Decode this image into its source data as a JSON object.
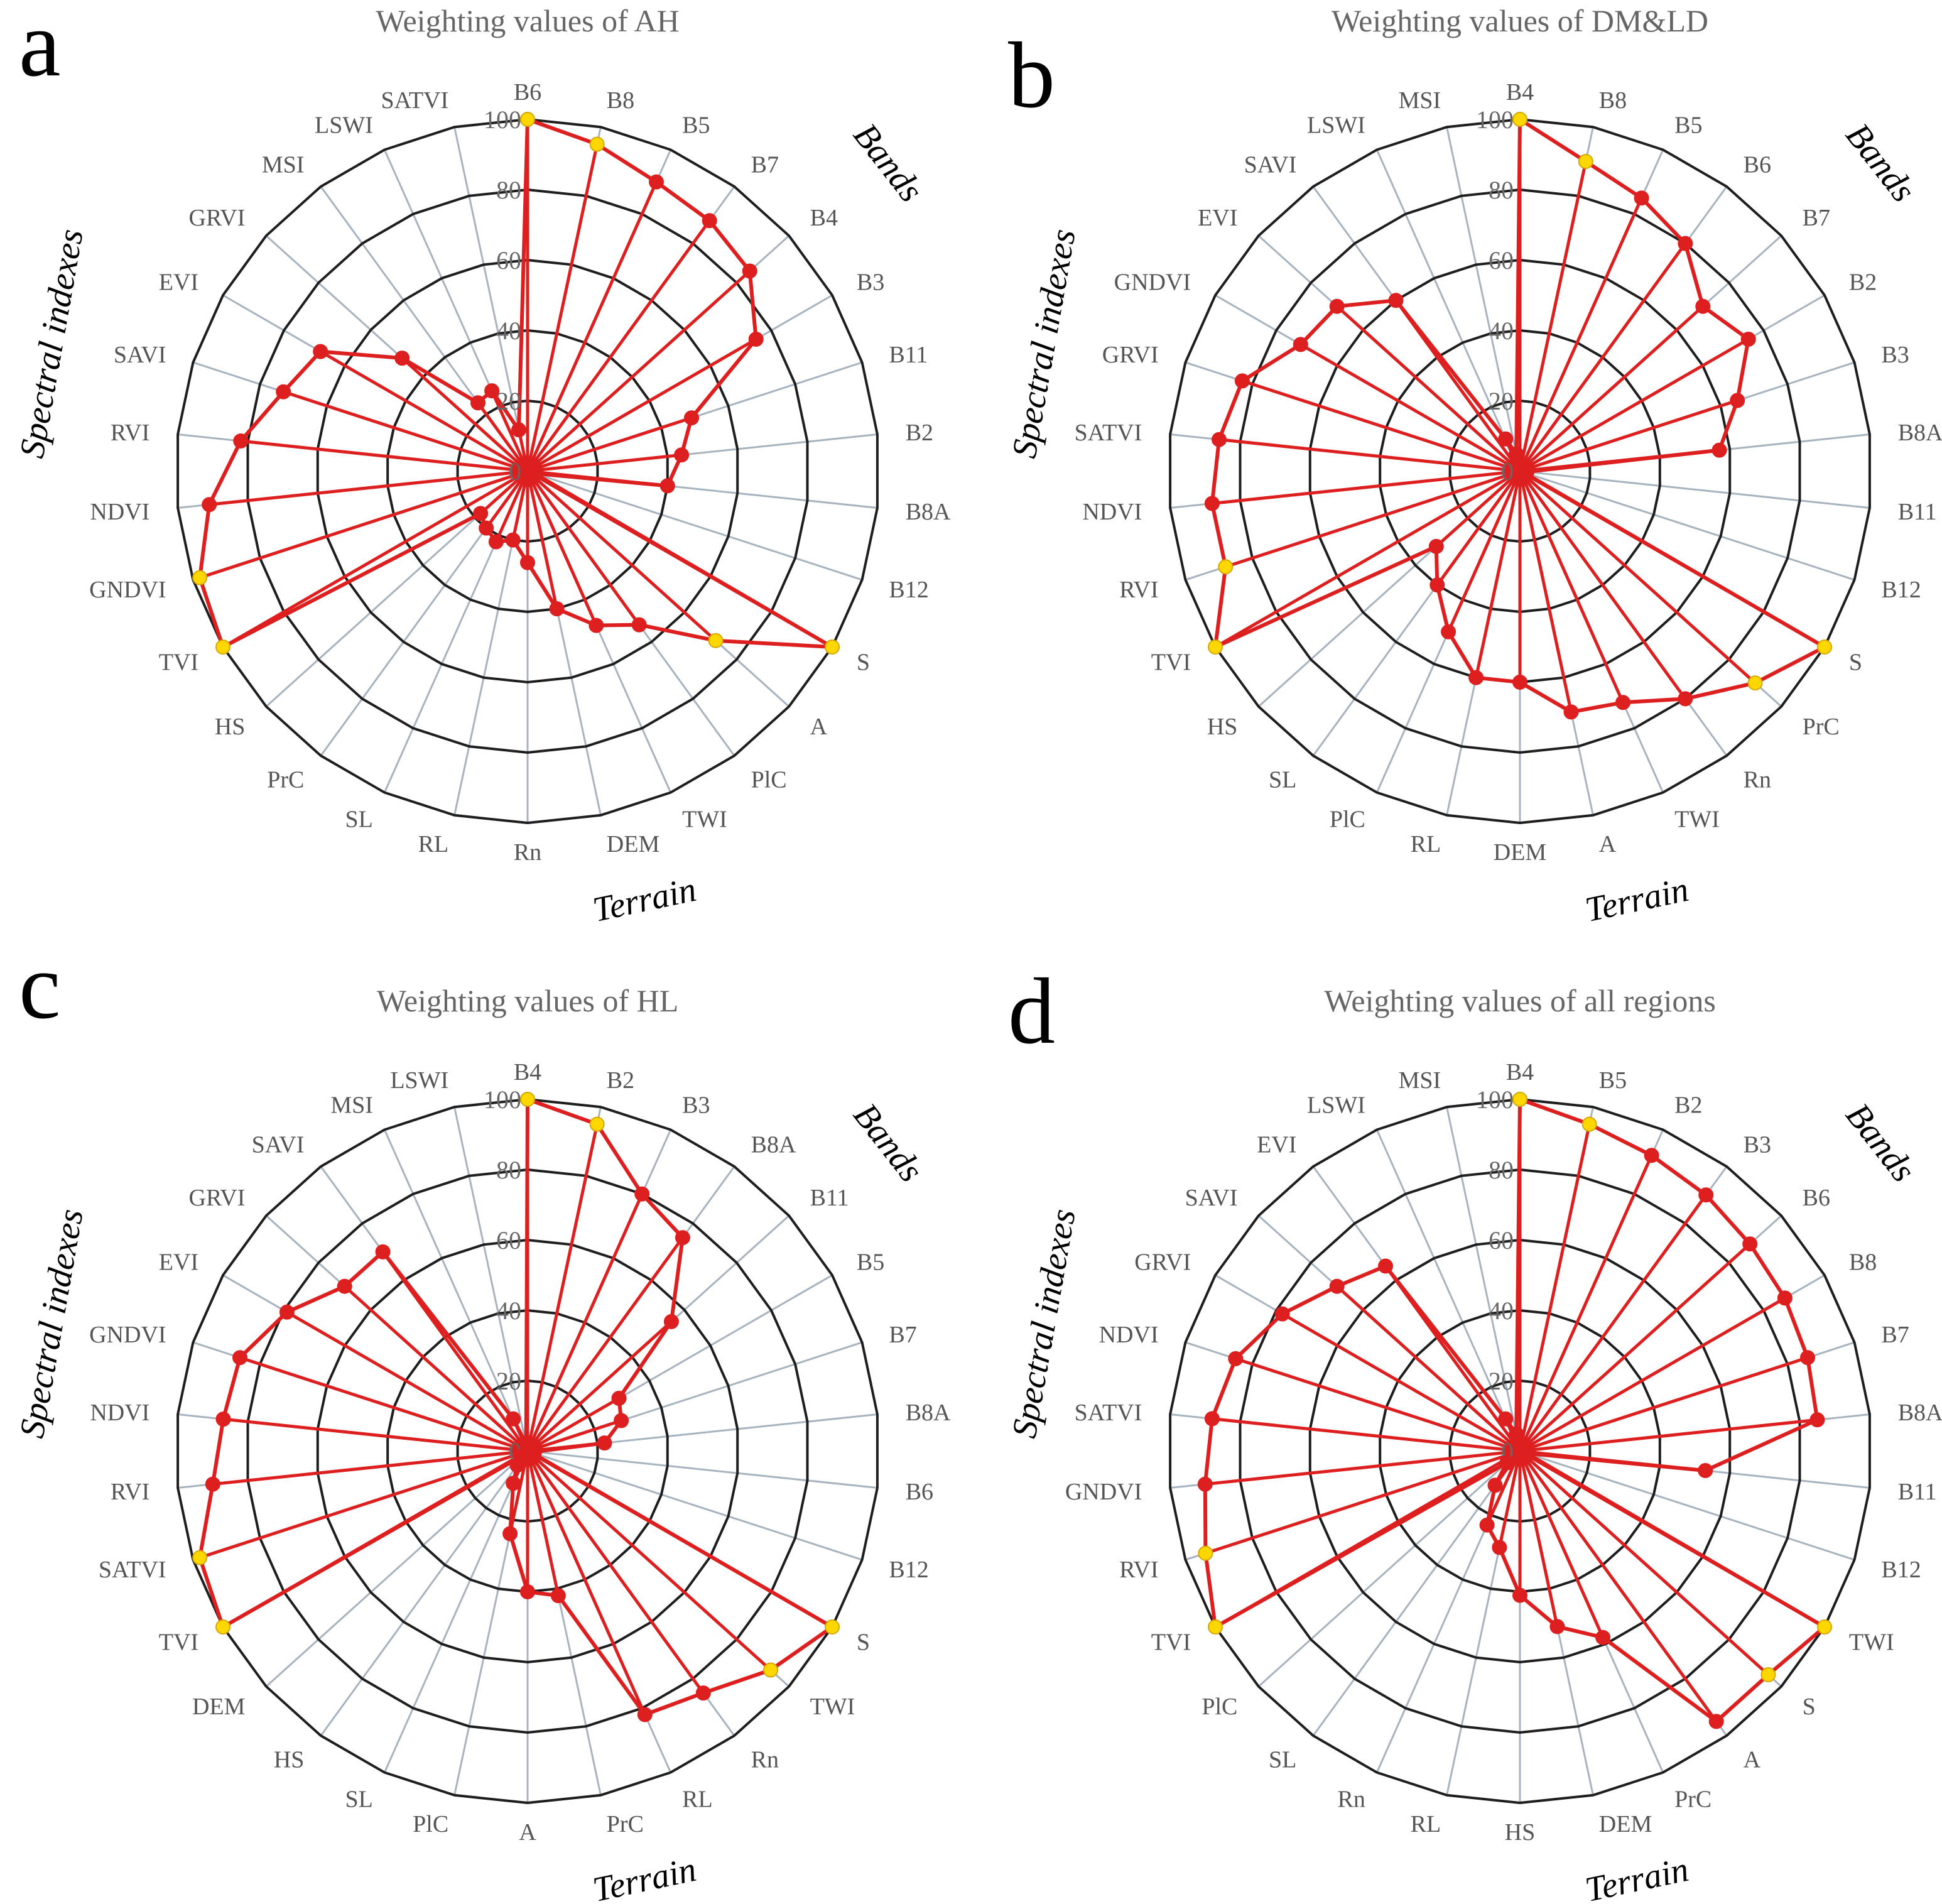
{
  "figure": {
    "panels": [
      {
        "letter": "a",
        "title": "Weighting values of AH"
      },
      {
        "letter": "b",
        "title": "Weighting values of DM&LD"
      },
      {
        "letter": "c",
        "title": "Weighting values of HL"
      },
      {
        "letter": "d",
        "title": "Weighting values of all regions"
      }
    ]
  },
  "chart_data": [
    {
      "type": "radar",
      "title": "Weighting values of AH",
      "categories": [
        "B6",
        "B8",
        "B5",
        "B7",
        "B4",
        "B3",
        "B11",
        "B2",
        "B8A",
        "B12",
        "S",
        "A",
        "PlC",
        "TWI",
        "DEM",
        "Rn",
        "RL",
        "SL",
        "PrC",
        "HS",
        "TVI",
        "GNDVI",
        "NDVI",
        "RVI",
        "SAVI",
        "EVI",
        "GRVI",
        "MSI",
        "LSWI",
        "SATVI"
      ],
      "values": [
        100,
        95,
        90,
        88,
        85,
        75,
        49,
        44,
        40,
        2,
        100,
        72,
        54,
        48,
        40,
        26,
        20,
        22,
        20,
        18,
        100,
        98,
        91,
        82,
        73,
        68,
        48,
        24,
        25,
        12
      ],
      "highlighted": [
        0,
        1,
        10,
        11,
        20,
        21
      ],
      "rlim": [
        0,
        100
      ],
      "rticks": [
        0,
        20,
        40,
        60,
        80,
        100
      ],
      "groups": [
        "Bands",
        "Terrain",
        "Spectral indexes"
      ],
      "colors": {
        "line": "#dd1f1f",
        "point": "#dd1f1f",
        "highlight": "#ffd700",
        "ring": "#1e1e1e",
        "spoke": "#a7b4c0"
      }
    },
    {
      "type": "radar",
      "title": "Weighting values of DM&LD",
      "categories": [
        "B4",
        "B8",
        "B5",
        "B6",
        "B7",
        "B2",
        "B3",
        "B8A",
        "B11",
        "B12",
        "S",
        "PrC",
        "Rn",
        "TWI",
        "A",
        "DEM",
        "RL",
        "PlC",
        "SL",
        "HS",
        "TVI",
        "RVI",
        "NDVI",
        "SATVI",
        "GRVI",
        "GNDVI",
        "EVI",
        "SAVI",
        "LSWI",
        "MSI"
      ],
      "values": [
        100,
        90,
        85,
        80,
        70,
        75,
        65,
        57,
        2,
        1,
        100,
        90,
        80,
        72,
        70,
        60,
        60,
        50,
        40,
        32,
        100,
        88,
        88,
        86,
        83,
        72,
        70,
        60,
        10,
        5
      ],
      "highlighted": [
        0,
        1,
        10,
        11,
        20,
        21
      ],
      "rlim": [
        0,
        100
      ],
      "rticks": [
        0,
        20,
        40,
        60,
        80,
        100
      ],
      "groups": [
        "Bands",
        "Terrain",
        "Spectral indexes"
      ],
      "colors": {
        "line": "#dd1f1f",
        "point": "#dd1f1f",
        "highlight": "#ffd700",
        "ring": "#1e1e1e",
        "spoke": "#a7b4c0"
      }
    },
    {
      "type": "radar",
      "title": "Weighting values of HL",
      "categories": [
        "B4",
        "B2",
        "B3",
        "B8A",
        "B11",
        "B5",
        "B7",
        "B8A",
        "B6",
        "B12",
        "S",
        "TWI",
        "Rn",
        "RL",
        "PrC",
        "A",
        "PlC",
        "SL",
        "HS",
        "DEM",
        "TVI",
        "SATVI",
        "RVI",
        "NDVI",
        "GNDVI",
        "EVI",
        "GRVI",
        "SAVI",
        "MSI",
        "LSWI"
      ],
      "values": [
        100,
        95,
        80,
        75,
        55,
        30,
        28,
        22,
        2,
        1,
        100,
        93,
        85,
        82,
        42,
        40,
        24,
        10,
        5,
        2,
        100,
        98,
        90,
        87,
        86,
        79,
        70,
        70,
        10,
        2
      ],
      "highlighted": [
        0,
        1,
        10,
        11,
        20,
        21
      ],
      "rlim": [
        0,
        100
      ],
      "rticks": [
        0,
        20,
        40,
        60,
        80,
        100
      ],
      "groups": [
        "Bands",
        "Terrain",
        "Spectral indexes"
      ],
      "colors": {
        "line": "#dd1f1f",
        "point": "#dd1f1f",
        "highlight": "#ffd700",
        "ring": "#1e1e1e",
        "spoke": "#a7b4c0"
      }
    },
    {
      "type": "radar",
      "title": "Weighting values of all regions",
      "categories": [
        "B4",
        "B5",
        "B2",
        "B3",
        "B6",
        "B8",
        "B7",
        "B8A",
        "B11",
        "B12",
        "TWI",
        "S",
        "A",
        "PrC",
        "DEM",
        "HS",
        "RL",
        "Rn",
        "SL",
        "PlC",
        "TVI",
        "RVI",
        "GNDVI",
        "SATVI",
        "NDVI",
        "GRVI",
        "SAVI",
        "EVI",
        "LSWI",
        "MSI"
      ],
      "values": [
        100,
        95,
        92,
        90,
        88,
        87,
        86,
        85,
        53,
        2,
        100,
        95,
        95,
        58,
        51,
        41,
        28,
        23,
        12,
        5,
        100,
        94,
        90,
        88,
        85,
        78,
        70,
        65,
        10,
        5
      ],
      "highlighted": [
        0,
        1,
        10,
        11,
        20,
        21
      ],
      "rlim": [
        0,
        100
      ],
      "rticks": [
        0,
        20,
        40,
        60,
        80,
        100
      ],
      "groups": [
        "Bands",
        "Terrain",
        "Spectral indexes"
      ],
      "colors": {
        "line": "#dd1f1f",
        "point": "#dd1f1f",
        "highlight": "#ffd700",
        "ring": "#1e1e1e",
        "spoke": "#a7b4c0"
      }
    }
  ]
}
